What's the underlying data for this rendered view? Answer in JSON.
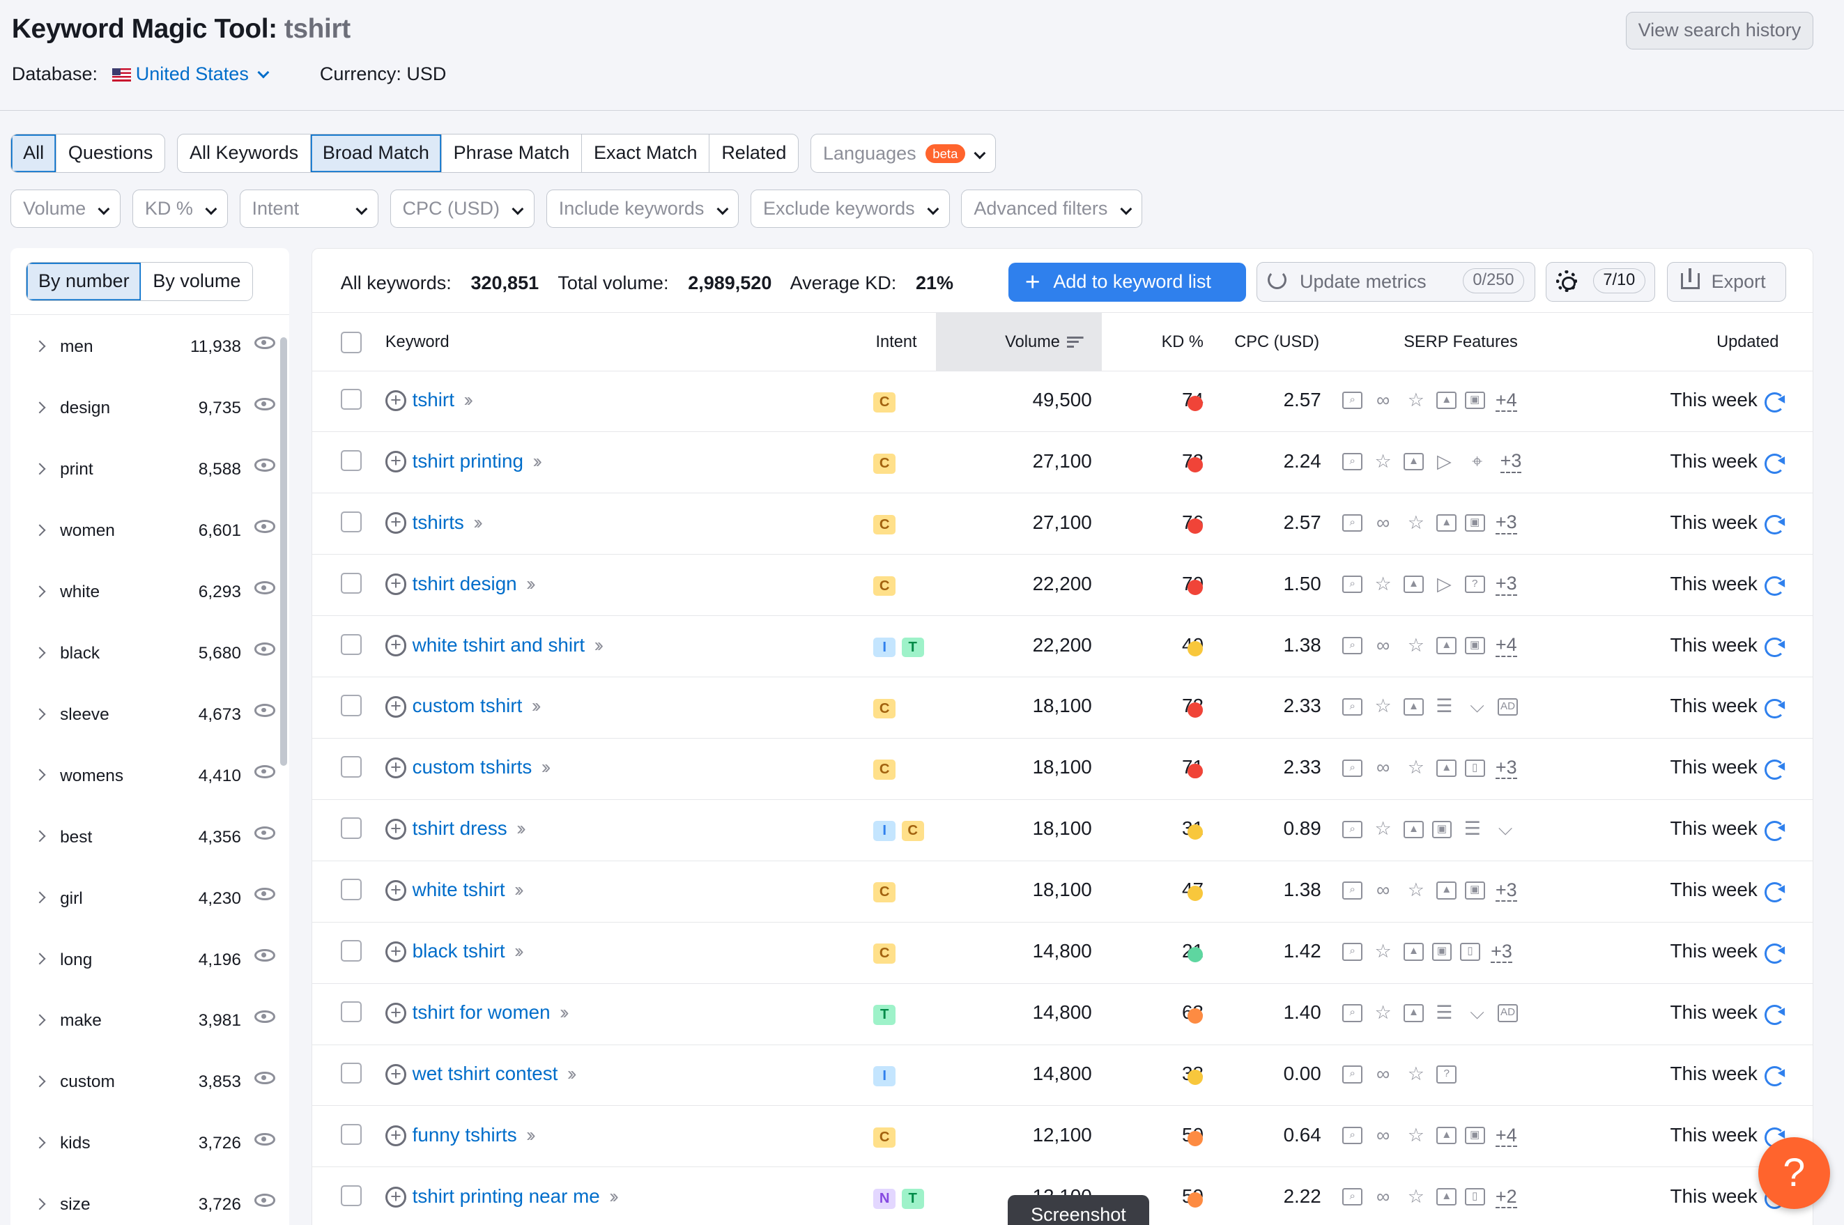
{
  "header": {
    "title": "Keyword Magic Tool:",
    "query": "tshirt",
    "db_label": "Database:",
    "db_value": "United States",
    "currency": "Currency: USD",
    "history_button": "View search history"
  },
  "tabs": {
    "questions_group": [
      "All",
      "Questions"
    ],
    "match_group": [
      "All Keywords",
      "Broad Match",
      "Phrase Match",
      "Exact Match",
      "Related"
    ],
    "languages": "Languages",
    "beta": "beta"
  },
  "filters": [
    "Volume",
    "KD %",
    "Intent",
    "CPC (USD)",
    "Include keywords",
    "Exclude keywords",
    "Advanced filters"
  ],
  "sidebar": {
    "toggle": [
      "By number",
      "By volume"
    ],
    "items": [
      {
        "word": "men",
        "count": "11,938"
      },
      {
        "word": "design",
        "count": "9,735"
      },
      {
        "word": "print",
        "count": "8,588"
      },
      {
        "word": "women",
        "count": "6,601"
      },
      {
        "word": "white",
        "count": "6,293"
      },
      {
        "word": "black",
        "count": "5,680"
      },
      {
        "word": "sleeve",
        "count": "4,673"
      },
      {
        "word": "womens",
        "count": "4,410"
      },
      {
        "word": "best",
        "count": "4,356"
      },
      {
        "word": "girl",
        "count": "4,230"
      },
      {
        "word": "long",
        "count": "4,196"
      },
      {
        "word": "make",
        "count": "3,981"
      },
      {
        "word": "custom",
        "count": "3,853"
      },
      {
        "word": "kids",
        "count": "3,726"
      },
      {
        "word": "size",
        "count": "3,726"
      }
    ]
  },
  "stats": {
    "all_label": "All keywords:",
    "all_value": "320,851",
    "vol_label": "Total volume:",
    "vol_value": "2,989,520",
    "kd_label": "Average KD:",
    "kd_value": "21%"
  },
  "actions": {
    "add": "Add to keyword list",
    "update": "Update metrics",
    "update_count": "0/250",
    "settings_count": "7/10",
    "export": "Export"
  },
  "columns": {
    "keyword": "Keyword",
    "intent": "Intent",
    "volume": "Volume",
    "kd": "KD %",
    "cpc": "CPC (USD)",
    "serp": "SERP Features",
    "updated": "Updated"
  },
  "colors": {
    "red": "#f04438",
    "yellow": "#f8c73c",
    "orange": "#fd8b42",
    "green": "#5ed6a0"
  },
  "rows": [
    {
      "kw": "tshirt",
      "intent": [
        "C"
      ],
      "vol": "49,500",
      "kd": "74",
      "dot": "red",
      "cpc": "2.57",
      "serp": [
        "search-icon",
        "link-icon",
        "star-icon",
        "image-icon",
        "gallery-icon"
      ],
      "more": "+4",
      "upd": "This week"
    },
    {
      "kw": "tshirt printing",
      "intent": [
        "C"
      ],
      "vol": "27,100",
      "kd": "72",
      "dot": "red",
      "cpc": "2.24",
      "serp": [
        "search-icon",
        "star-icon",
        "image-icon",
        "video-icon",
        "location-icon"
      ],
      "more": "+3",
      "upd": "This week"
    },
    {
      "kw": "tshirts",
      "intent": [
        "C"
      ],
      "vol": "27,100",
      "kd": "76",
      "dot": "red",
      "cpc": "2.57",
      "serp": [
        "search-icon",
        "link-icon",
        "star-icon",
        "image-icon",
        "gallery-icon"
      ],
      "more": "+3",
      "upd": "This week"
    },
    {
      "kw": "tshirt design",
      "intent": [
        "C"
      ],
      "vol": "22,200",
      "kd": "70",
      "dot": "red",
      "cpc": "1.50",
      "serp": [
        "search-icon",
        "star-icon",
        "image-icon",
        "video-icon",
        "faq-icon"
      ],
      "more": "+3",
      "upd": "This week"
    },
    {
      "kw": "white tshirt and shirt",
      "intent": [
        "I",
        "T"
      ],
      "vol": "22,200",
      "kd": "40",
      "dot": "yellow",
      "cpc": "1.38",
      "serp": [
        "search-icon",
        "link-icon",
        "star-icon",
        "image-icon",
        "gallery-icon"
      ],
      "more": "+4",
      "upd": "This week"
    },
    {
      "kw": "custom tshirt",
      "intent": [
        "C"
      ],
      "vol": "18,100",
      "kd": "72",
      "dot": "red",
      "cpc": "2.33",
      "serp": [
        "search-icon",
        "star-icon",
        "image-icon",
        "list-icon",
        "cart-icon",
        "ad-icon"
      ],
      "more": "",
      "upd": "This week"
    },
    {
      "kw": "custom tshirts",
      "intent": [
        "C"
      ],
      "vol": "18,100",
      "kd": "71",
      "dot": "red",
      "cpc": "2.33",
      "serp": [
        "search-icon",
        "link-icon",
        "star-icon",
        "image-icon",
        "carousel-icon"
      ],
      "more": "+3",
      "upd": "This week"
    },
    {
      "kw": "tshirt dress",
      "intent": [
        "I",
        "C"
      ],
      "vol": "18,100",
      "kd": "31",
      "dot": "yellow",
      "cpc": "0.89",
      "serp": [
        "search-icon",
        "star-icon",
        "image-icon",
        "gallery-icon",
        "list-icon",
        "cart-icon"
      ],
      "more": "",
      "upd": "This week"
    },
    {
      "kw": "white tshirt",
      "intent": [
        "C"
      ],
      "vol": "18,100",
      "kd": "47",
      "dot": "yellow",
      "cpc": "1.38",
      "serp": [
        "search-icon",
        "link-icon",
        "star-icon",
        "image-icon",
        "gallery-icon"
      ],
      "more": "+3",
      "upd": "This week"
    },
    {
      "kw": "black tshirt",
      "intent": [
        "C"
      ],
      "vol": "14,800",
      "kd": "21",
      "dot": "green",
      "cpc": "1.42",
      "serp": [
        "search-icon",
        "star-icon",
        "image-icon",
        "gallery-icon",
        "carousel-icon"
      ],
      "more": "+3",
      "upd": "This week"
    },
    {
      "kw": "tshirt for women",
      "intent": [
        "T"
      ],
      "vol": "14,800",
      "kd": "63",
      "dot": "orange",
      "cpc": "1.40",
      "serp": [
        "search-icon",
        "star-icon",
        "image-icon",
        "list-icon",
        "cart-icon",
        "ad-icon"
      ],
      "more": "",
      "upd": "This week"
    },
    {
      "kw": "wet tshirt contest",
      "intent": [
        "I"
      ],
      "vol": "14,800",
      "kd": "38",
      "dot": "yellow",
      "cpc": "0.00",
      "serp": [
        "search-icon",
        "link-icon",
        "star-icon",
        "faq-icon"
      ],
      "more": "",
      "upd": "This week"
    },
    {
      "kw": "funny tshirts",
      "intent": [
        "C"
      ],
      "vol": "12,100",
      "kd": "50",
      "dot": "orange",
      "cpc": "0.64",
      "serp": [
        "search-icon",
        "link-icon",
        "star-icon",
        "image-icon",
        "gallery-icon"
      ],
      "more": "+4",
      "upd": "This week"
    },
    {
      "kw": "tshirt printing near me",
      "intent": [
        "N",
        "T"
      ],
      "vol": "12,100",
      "kd": "59",
      "dot": "orange",
      "cpc": "2.22",
      "serp": [
        "search-icon",
        "link-icon",
        "star-icon",
        "image-icon",
        "carousel-icon"
      ],
      "more": "+2",
      "upd": "This week"
    }
  ],
  "help": "?",
  "tooltip": "Screenshot"
}
